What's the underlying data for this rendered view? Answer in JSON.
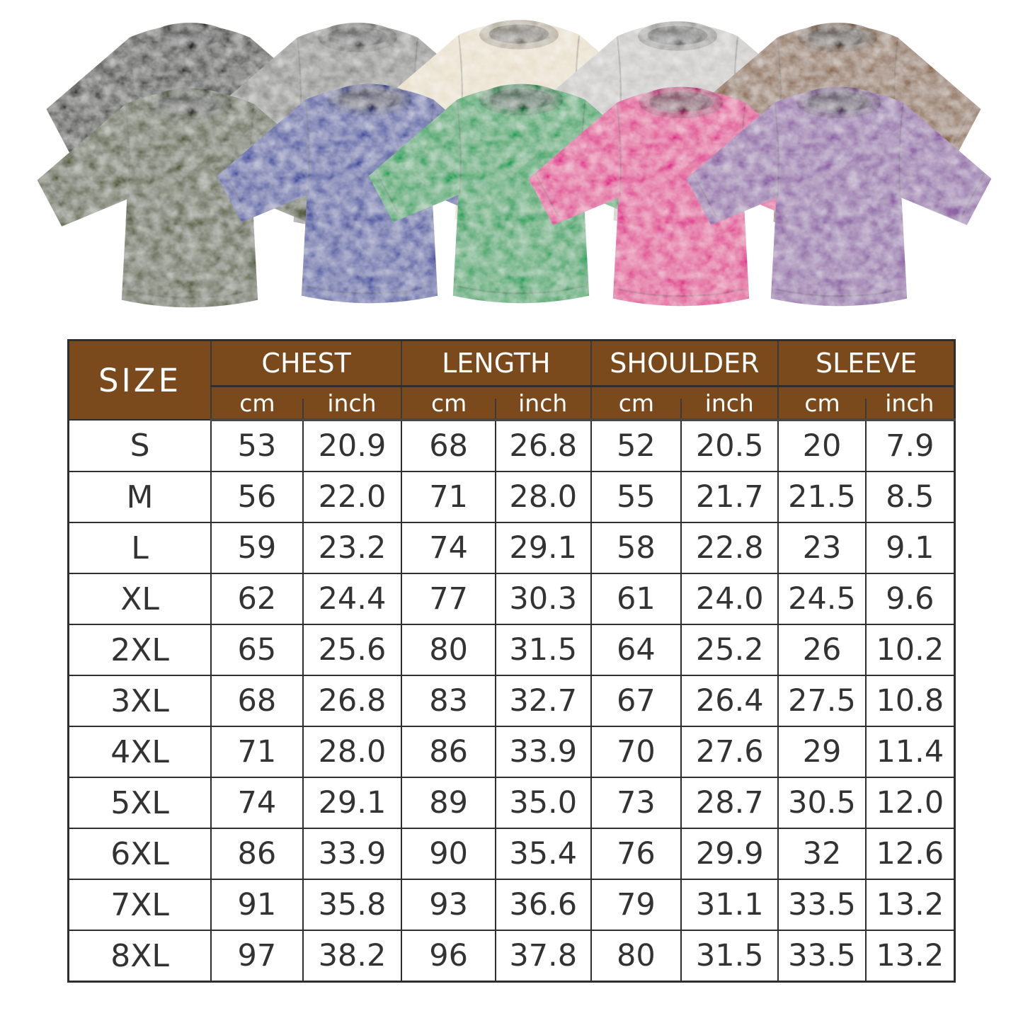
{
  "gallery": {
    "shirts": [
      {
        "name": "black",
        "color": "#3b3a37",
        "row": "back"
      },
      {
        "name": "dark-gray",
        "color": "#8e8e8c",
        "row": "back"
      },
      {
        "name": "cream",
        "color": "#e8dfca",
        "row": "back"
      },
      {
        "name": "light-gray",
        "color": "#c9c8c6",
        "row": "back"
      },
      {
        "name": "brown",
        "color": "#8d6c50",
        "row": "back"
      },
      {
        "name": "army-green",
        "color": "#566140",
        "row": "front"
      },
      {
        "name": "blue",
        "color": "#4753a3",
        "row": "front"
      },
      {
        "name": "green",
        "color": "#1aa35c",
        "row": "front"
      },
      {
        "name": "rose-pink",
        "color": "#e0308f",
        "row": "front"
      },
      {
        "name": "purple",
        "color": "#8e64a6",
        "row": "front"
      }
    ]
  },
  "chart_data": {
    "type": "table",
    "row_header": "SIZE",
    "column_groups": [
      "CHEST",
      "LENGTH",
      "SHOULDER",
      "SLEEVE"
    ],
    "units": [
      "cm",
      "inch"
    ],
    "columns": [
      "size",
      "chest_cm",
      "chest_inch",
      "length_cm",
      "length_inch",
      "shoulder_cm",
      "shoulder_inch",
      "sleeve_cm",
      "sleeve_inch"
    ],
    "rows": [
      {
        "size": "S",
        "chest_cm": "53",
        "chest_inch": "20.9",
        "length_cm": "68",
        "length_inch": "26.8",
        "shoulder_cm": "52",
        "shoulder_inch": "20.5",
        "sleeve_cm": "20",
        "sleeve_inch": "7.9"
      },
      {
        "size": "M",
        "chest_cm": "56",
        "chest_inch": "22.0",
        "length_cm": "71",
        "length_inch": "28.0",
        "shoulder_cm": "55",
        "shoulder_inch": "21.7",
        "sleeve_cm": "21.5",
        "sleeve_inch": "8.5"
      },
      {
        "size": "L",
        "chest_cm": "59",
        "chest_inch": "23.2",
        "length_cm": "74",
        "length_inch": "29.1",
        "shoulder_cm": "58",
        "shoulder_inch": "22.8",
        "sleeve_cm": "23",
        "sleeve_inch": "9.1"
      },
      {
        "size": "XL",
        "chest_cm": "62",
        "chest_inch": "24.4",
        "length_cm": "77",
        "length_inch": "30.3",
        "shoulder_cm": "61",
        "shoulder_inch": "24.0",
        "sleeve_cm": "24.5",
        "sleeve_inch": "9.6"
      },
      {
        "size": "2XL",
        "chest_cm": "65",
        "chest_inch": "25.6",
        "length_cm": "80",
        "length_inch": "31.5",
        "shoulder_cm": "64",
        "shoulder_inch": "25.2",
        "sleeve_cm": "26",
        "sleeve_inch": "10.2"
      },
      {
        "size": "3XL",
        "chest_cm": "68",
        "chest_inch": "26.8",
        "length_cm": "83",
        "length_inch": "32.7",
        "shoulder_cm": "67",
        "shoulder_inch": "26.4",
        "sleeve_cm": "27.5",
        "sleeve_inch": "10.8"
      },
      {
        "size": "4XL",
        "chest_cm": "71",
        "chest_inch": "28.0",
        "length_cm": "86",
        "length_inch": "33.9",
        "shoulder_cm": "70",
        "shoulder_inch": "27.6",
        "sleeve_cm": "29",
        "sleeve_inch": "11.4"
      },
      {
        "size": "5XL",
        "chest_cm": "74",
        "chest_inch": "29.1",
        "length_cm": "89",
        "length_inch": "35.0",
        "shoulder_cm": "73",
        "shoulder_inch": "28.7",
        "sleeve_cm": "30.5",
        "sleeve_inch": "12.0"
      },
      {
        "size": "6XL",
        "chest_cm": "86",
        "chest_inch": "33.9",
        "length_cm": "90",
        "length_inch": "35.4",
        "shoulder_cm": "76",
        "shoulder_inch": "29.9",
        "sleeve_cm": "32",
        "sleeve_inch": "12.6"
      },
      {
        "size": "7XL",
        "chest_cm": "91",
        "chest_inch": "35.8",
        "length_cm": "93",
        "length_inch": "36.6",
        "shoulder_cm": "79",
        "shoulder_inch": "31.1",
        "sleeve_cm": "33.5",
        "sleeve_inch": "13.2"
      },
      {
        "size": "8XL",
        "chest_cm": "97",
        "chest_inch": "38.2",
        "length_cm": "96",
        "length_inch": "37.8",
        "shoulder_cm": "80",
        "shoulder_inch": "31.5",
        "sleeve_cm": "33.5",
        "sleeve_inch": "13.2"
      }
    ]
  },
  "colors": {
    "header_bg": "#7a4a1c",
    "header_text": "#ffffff",
    "grid_line": "#2e2e2e",
    "cell_text": "#333333",
    "page_bg": "#ffffff"
  }
}
